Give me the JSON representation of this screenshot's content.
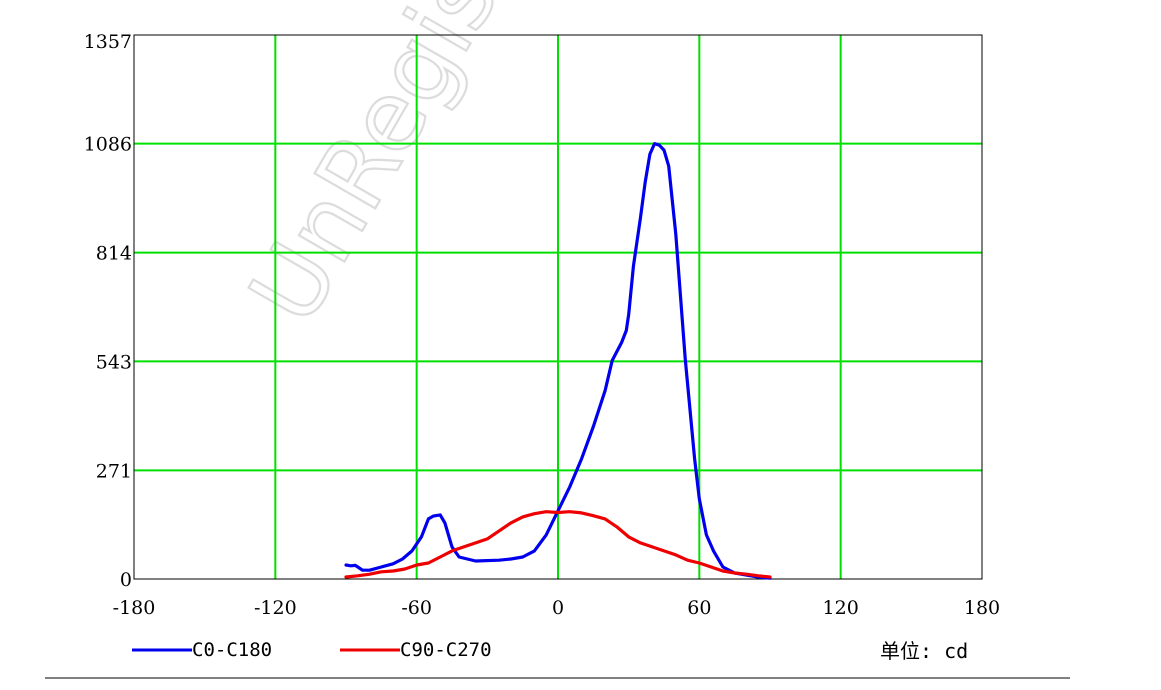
{
  "chart_data": {
    "type": "line",
    "title": "",
    "xlabel": "",
    "ylabel": "",
    "xlim": [
      -180,
      180
    ],
    "ylim": [
      0,
      1357
    ],
    "x_ticks": [
      "-180",
      "-120",
      "-60",
      "0",
      "60",
      "120",
      "180"
    ],
    "x_tick_values": [
      -180,
      -120,
      -60,
      0,
      60,
      120,
      180
    ],
    "y_ticks": [
      "0",
      "271",
      "543",
      "814",
      "1086",
      "1357"
    ],
    "y_tick_values": [
      0,
      271,
      543,
      814,
      1086,
      1357
    ],
    "grid": true,
    "legend_position": "bottom",
    "series": [
      {
        "name": "C0-C180",
        "color": "#0000ee",
        "points": [
          [
            -90,
            35
          ],
          [
            -88,
            33
          ],
          [
            -86,
            34
          ],
          [
            -85,
            30
          ],
          [
            -83,
            22
          ],
          [
            -80,
            22
          ],
          [
            -75,
            30
          ],
          [
            -70,
            38
          ],
          [
            -66,
            50
          ],
          [
            -62,
            70
          ],
          [
            -58,
            105
          ],
          [
            -55,
            150
          ],
          [
            -53,
            157
          ],
          [
            -50,
            160
          ],
          [
            -48,
            140
          ],
          [
            -45,
            80
          ],
          [
            -42,
            55
          ],
          [
            -35,
            45
          ],
          [
            -25,
            47
          ],
          [
            -20,
            50
          ],
          [
            -15,
            55
          ],
          [
            -10,
            70
          ],
          [
            -5,
            110
          ],
          [
            0,
            170
          ],
          [
            5,
            230
          ],
          [
            10,
            300
          ],
          [
            15,
            380
          ],
          [
            20,
            470
          ],
          [
            23,
            545
          ],
          [
            27,
            590
          ],
          [
            29,
            620
          ],
          [
            30,
            660
          ],
          [
            32,
            780
          ],
          [
            35,
            900
          ],
          [
            37,
            990
          ],
          [
            39,
            1060
          ],
          [
            41,
            1086
          ],
          [
            43,
            1082
          ],
          [
            45,
            1070
          ],
          [
            47,
            1030
          ],
          [
            50,
            860
          ],
          [
            54,
            550
          ],
          [
            58,
            300
          ],
          [
            60,
            200
          ],
          [
            63,
            110
          ],
          [
            66,
            70
          ],
          [
            70,
            30
          ],
          [
            75,
            15
          ],
          [
            80,
            10
          ],
          [
            85,
            5
          ],
          [
            90,
            2
          ]
        ]
      },
      {
        "name": "C90-C270",
        "color": "#ee0000",
        "points": [
          [
            -90,
            5
          ],
          [
            -85,
            8
          ],
          [
            -80,
            12
          ],
          [
            -75,
            18
          ],
          [
            -70,
            20
          ],
          [
            -65,
            25
          ],
          [
            -60,
            35
          ],
          [
            -55,
            40
          ],
          [
            -50,
            55
          ],
          [
            -45,
            70
          ],
          [
            -40,
            80
          ],
          [
            -35,
            90
          ],
          [
            -30,
            100
          ],
          [
            -25,
            120
          ],
          [
            -20,
            140
          ],
          [
            -15,
            155
          ],
          [
            -10,
            163
          ],
          [
            -5,
            168
          ],
          [
            0,
            166
          ],
          [
            5,
            168
          ],
          [
            10,
            165
          ],
          [
            15,
            158
          ],
          [
            20,
            150
          ],
          [
            25,
            130
          ],
          [
            30,
            105
          ],
          [
            35,
            90
          ],
          [
            40,
            80
          ],
          [
            45,
            70
          ],
          [
            50,
            60
          ],
          [
            55,
            47
          ],
          [
            60,
            40
          ],
          [
            65,
            30
          ],
          [
            70,
            20
          ],
          [
            75,
            15
          ],
          [
            80,
            12
          ],
          [
            85,
            8
          ],
          [
            90,
            5
          ]
        ]
      }
    ]
  },
  "unit_label": "单位: cd",
  "watermark": "UnRegistered"
}
